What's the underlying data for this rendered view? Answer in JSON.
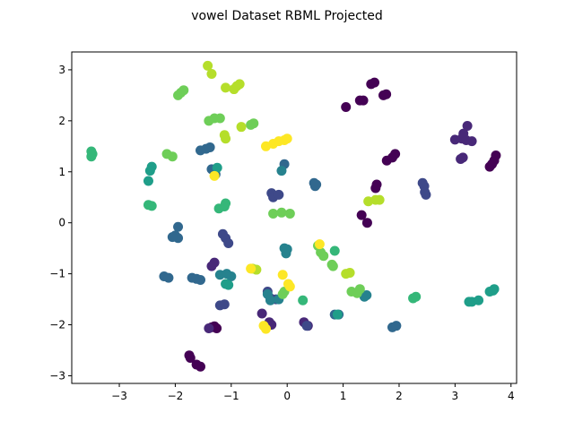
{
  "chart_data": {
    "type": "scatter",
    "title": "vowel Dataset RBML Projected",
    "xlabel": "",
    "ylabel": "",
    "xlim": [
      -3.85,
      4.1
    ],
    "ylim": [
      -3.15,
      3.35
    ],
    "xticks": [
      -3,
      -2,
      -1,
      0,
      1,
      2,
      3,
      4
    ],
    "yticks": [
      -3,
      -2,
      -1,
      0,
      1,
      2,
      3
    ],
    "xtick_labels": [
      "−3",
      "−2",
      "−1",
      "0",
      "1",
      "2",
      "3",
      "4"
    ],
    "ytick_labels": [
      "−3",
      "−2",
      "−1",
      "0",
      "1",
      "2",
      "3"
    ],
    "grid": false,
    "legend": "none",
    "colormap": "viridis",
    "palette": [
      "#440154",
      "#482878",
      "#3e4989",
      "#31688e",
      "#26828e",
      "#1f9e89",
      "#35b779",
      "#6ece58",
      "#b5de2b",
      "#fde725"
    ],
    "points": [
      {
        "x": 1.05,
        "y": 2.27,
        "c": 0
      },
      {
        "x": 1.3,
        "y": 2.4,
        "c": 0
      },
      {
        "x": 1.36,
        "y": 2.4,
        "c": 0
      },
      {
        "x": 1.5,
        "y": 2.72,
        "c": 0
      },
      {
        "x": 1.56,
        "y": 2.75,
        "c": 0
      },
      {
        "x": 1.72,
        "y": 2.5,
        "c": 0
      },
      {
        "x": 1.77,
        "y": 2.52,
        "c": 0
      },
      {
        "x": 1.78,
        "y": 1.22,
        "c": 0
      },
      {
        "x": 1.88,
        "y": 1.28,
        "c": 0
      },
      {
        "x": 1.93,
        "y": 1.35,
        "c": 0
      },
      {
        "x": 1.58,
        "y": 0.68,
        "c": 0
      },
      {
        "x": 1.6,
        "y": 0.75,
        "c": 0
      },
      {
        "x": 1.33,
        "y": 0.15,
        "c": 0
      },
      {
        "x": 1.43,
        "y": 0.0,
        "c": 0
      },
      {
        "x": 3.62,
        "y": 1.1,
        "c": 0
      },
      {
        "x": 3.66,
        "y": 1.15,
        "c": 0
      },
      {
        "x": 3.7,
        "y": 1.22,
        "c": 0
      },
      {
        "x": 3.73,
        "y": 1.32,
        "c": 0
      },
      {
        "x": -1.75,
        "y": -2.6,
        "c": 0
      },
      {
        "x": -1.73,
        "y": -2.65,
        "c": 0
      },
      {
        "x": -1.62,
        "y": -2.78,
        "c": 0
      },
      {
        "x": -1.55,
        "y": -2.82,
        "c": 0
      },
      {
        "x": -1.35,
        "y": -2.05,
        "c": 0
      },
      {
        "x": -1.3,
        "y": -2.03,
        "c": 0
      },
      {
        "x": -1.26,
        "y": -2.07,
        "c": 0
      },
      {
        "x": 3.0,
        "y": 1.63,
        "c": 1
      },
      {
        "x": 3.12,
        "y": 1.65,
        "c": 1
      },
      {
        "x": 3.15,
        "y": 1.75,
        "c": 1
      },
      {
        "x": 3.22,
        "y": 1.9,
        "c": 1
      },
      {
        "x": 3.2,
        "y": 1.62,
        "c": 1
      },
      {
        "x": 3.3,
        "y": 1.6,
        "c": 1
      },
      {
        "x": 3.14,
        "y": 1.28,
        "c": 1
      },
      {
        "x": 3.1,
        "y": 1.25,
        "c": 1
      },
      {
        "x": -0.45,
        "y": -1.78,
        "c": 1
      },
      {
        "x": -0.32,
        "y": -1.95,
        "c": 1
      },
      {
        "x": -0.28,
        "y": -2.0,
        "c": 1
      },
      {
        "x": 0.3,
        "y": -1.95,
        "c": 1
      },
      {
        "x": 0.37,
        "y": -2.02,
        "c": 1
      },
      {
        "x": -1.35,
        "y": -0.85,
        "c": 1
      },
      {
        "x": -1.3,
        "y": -0.78,
        "c": 1
      },
      {
        "x": -1.4,
        "y": -2.07,
        "c": 1
      },
      {
        "x": 2.42,
        "y": 0.78,
        "c": 2
      },
      {
        "x": 2.45,
        "y": 0.72,
        "c": 2
      },
      {
        "x": 2.46,
        "y": 0.6,
        "c": 2
      },
      {
        "x": 2.48,
        "y": 0.55,
        "c": 2
      },
      {
        "x": -0.28,
        "y": 0.58,
        "c": 2
      },
      {
        "x": -0.25,
        "y": 0.5,
        "c": 2
      },
      {
        "x": -0.15,
        "y": 0.55,
        "c": 2
      },
      {
        "x": -0.35,
        "y": -1.35,
        "c": 2
      },
      {
        "x": -0.3,
        "y": -1.48,
        "c": 2
      },
      {
        "x": -0.2,
        "y": -1.5,
        "c": 2
      },
      {
        "x": -1.15,
        "y": -0.22,
        "c": 2
      },
      {
        "x": -1.1,
        "y": -0.3,
        "c": 2
      },
      {
        "x": -1.05,
        "y": -0.4,
        "c": 2
      },
      {
        "x": -1.2,
        "y": -1.62,
        "c": 2
      },
      {
        "x": -1.12,
        "y": -1.6,
        "c": 2
      },
      {
        "x": 0.35,
        "y": -2.02,
        "c": 2
      },
      {
        "x": -1.45,
        "y": 1.45,
        "c": 3
      },
      {
        "x": -1.55,
        "y": 1.42,
        "c": 3
      },
      {
        "x": -1.38,
        "y": 1.48,
        "c": 3
      },
      {
        "x": -1.35,
        "y": 1.05,
        "c": 3
      },
      {
        "x": -1.3,
        "y": 1.0,
        "c": 3
      },
      {
        "x": -1.28,
        "y": 0.95,
        "c": 3
      },
      {
        "x": 0.48,
        "y": 0.78,
        "c": 3
      },
      {
        "x": 0.5,
        "y": 0.72,
        "c": 3
      },
      {
        "x": 0.52,
        "y": 0.75,
        "c": 3
      },
      {
        "x": -2.0,
        "y": -0.25,
        "c": 3
      },
      {
        "x": -1.95,
        "y": -0.3,
        "c": 3
      },
      {
        "x": -2.05,
        "y": -0.28,
        "c": 3
      },
      {
        "x": -1.95,
        "y": -0.08,
        "c": 3
      },
      {
        "x": -2.2,
        "y": -1.05,
        "c": 3
      },
      {
        "x": -2.12,
        "y": -1.08,
        "c": 3
      },
      {
        "x": -1.7,
        "y": -1.08,
        "c": 3
      },
      {
        "x": -1.62,
        "y": -1.1,
        "c": 3
      },
      {
        "x": -1.55,
        "y": -1.12,
        "c": 3
      },
      {
        "x": 1.88,
        "y": -2.05,
        "c": 3
      },
      {
        "x": 1.95,
        "y": -2.02,
        "c": 3
      },
      {
        "x": 0.85,
        "y": -1.8,
        "c": 3
      },
      {
        "x": 0.92,
        "y": -1.8,
        "c": 3
      },
      {
        "x": -0.05,
        "y": 1.15,
        "c": 3
      },
      {
        "x": -0.1,
        "y": 1.02,
        "c": 4
      },
      {
        "x": -0.05,
        "y": -0.5,
        "c": 4
      },
      {
        "x": 0.0,
        "y": -0.52,
        "c": 4
      },
      {
        "x": -0.02,
        "y": -0.6,
        "c": 4
      },
      {
        "x": -0.35,
        "y": -1.4,
        "c": 4
      },
      {
        "x": -0.3,
        "y": -1.52,
        "c": 4
      },
      {
        "x": -1.0,
        "y": -1.05,
        "c": 4
      },
      {
        "x": -1.08,
        "y": -1.0,
        "c": 4
      },
      {
        "x": -1.2,
        "y": -1.02,
        "c": 4
      },
      {
        "x": 1.38,
        "y": -1.45,
        "c": 4
      },
      {
        "x": 1.42,
        "y": -1.42,
        "c": 4
      },
      {
        "x": -0.15,
        "y": -1.5,
        "c": 4
      },
      {
        "x": 3.25,
        "y": -1.55,
        "c": 5
      },
      {
        "x": 3.3,
        "y": -1.55,
        "c": 5
      },
      {
        "x": 3.42,
        "y": -1.52,
        "c": 5
      },
      {
        "x": 3.62,
        "y": -1.35,
        "c": 5
      },
      {
        "x": 3.7,
        "y": -1.3,
        "c": 5
      },
      {
        "x": 3.68,
        "y": -1.33,
        "c": 5
      },
      {
        "x": -2.42,
        "y": 1.1,
        "c": 5
      },
      {
        "x": -2.45,
        "y": 1.02,
        "c": 5
      },
      {
        "x": -2.48,
        "y": 0.82,
        "c": 5
      },
      {
        "x": -1.05,
        "y": -1.22,
        "c": 5
      },
      {
        "x": -1.1,
        "y": -1.2,
        "c": 5
      },
      {
        "x": -1.25,
        "y": 1.08,
        "c": 5
      },
      {
        "x": 0.9,
        "y": -1.8,
        "c": 5
      },
      {
        "x": -3.5,
        "y": 1.4,
        "c": 6
      },
      {
        "x": -3.5,
        "y": 1.3,
        "c": 6
      },
      {
        "x": -3.48,
        "y": 1.35,
        "c": 6
      },
      {
        "x": -2.48,
        "y": 0.35,
        "c": 6
      },
      {
        "x": -2.42,
        "y": 0.33,
        "c": 6
      },
      {
        "x": -1.22,
        "y": 0.28,
        "c": 6
      },
      {
        "x": -1.12,
        "y": 0.32,
        "c": 6
      },
      {
        "x": -1.1,
        "y": 0.38,
        "c": 6
      },
      {
        "x": 2.25,
        "y": -1.48,
        "c": 6
      },
      {
        "x": 2.3,
        "y": -1.45,
        "c": 6
      },
      {
        "x": 0.85,
        "y": -0.55,
        "c": 6
      },
      {
        "x": 0.28,
        "y": -1.52,
        "c": 6
      },
      {
        "x": -1.95,
        "y": 2.5,
        "c": 7
      },
      {
        "x": -1.9,
        "y": 2.55,
        "c": 7
      },
      {
        "x": -1.85,
        "y": 2.6,
        "c": 7
      },
      {
        "x": -1.3,
        "y": 2.05,
        "c": 7
      },
      {
        "x": -1.4,
        "y": 2.0,
        "c": 7
      },
      {
        "x": -1.2,
        "y": 2.05,
        "c": 7
      },
      {
        "x": -2.15,
        "y": 1.35,
        "c": 7
      },
      {
        "x": -2.05,
        "y": 1.3,
        "c": 7
      },
      {
        "x": -0.65,
        "y": 1.92,
        "c": 7
      },
      {
        "x": -0.6,
        "y": 1.95,
        "c": 7
      },
      {
        "x": -0.25,
        "y": 0.18,
        "c": 7
      },
      {
        "x": -0.1,
        "y": 0.2,
        "c": 7
      },
      {
        "x": 0.05,
        "y": 0.18,
        "c": 7
      },
      {
        "x": -0.08,
        "y": -1.4,
        "c": 7
      },
      {
        "x": -0.05,
        "y": -1.35,
        "c": 7
      },
      {
        "x": 1.15,
        "y": -1.35,
        "c": 7
      },
      {
        "x": 1.25,
        "y": -1.38,
        "c": 7
      },
      {
        "x": 1.3,
        "y": -1.3,
        "c": 7
      },
      {
        "x": 0.55,
        "y": -0.45,
        "c": 7
      },
      {
        "x": 0.6,
        "y": -0.58,
        "c": 7
      },
      {
        "x": 0.65,
        "y": -0.65,
        "c": 7
      },
      {
        "x": 0.8,
        "y": -0.82,
        "c": 7
      },
      {
        "x": 0.82,
        "y": -0.85,
        "c": 7
      },
      {
        "x": -1.42,
        "y": 3.08,
        "c": 8
      },
      {
        "x": -1.35,
        "y": 2.92,
        "c": 8
      },
      {
        "x": -1.1,
        "y": 2.65,
        "c": 8
      },
      {
        "x": -0.95,
        "y": 2.62,
        "c": 8
      },
      {
        "x": -0.9,
        "y": 2.68,
        "c": 8
      },
      {
        "x": -0.85,
        "y": 2.72,
        "c": 8
      },
      {
        "x": -1.12,
        "y": 1.72,
        "c": 8
      },
      {
        "x": -1.1,
        "y": 1.65,
        "c": 8
      },
      {
        "x": -0.82,
        "y": 1.88,
        "c": 8
      },
      {
        "x": 1.45,
        "y": 0.42,
        "c": 8
      },
      {
        "x": 1.58,
        "y": 0.45,
        "c": 8
      },
      {
        "x": 1.65,
        "y": 0.45,
        "c": 8
      },
      {
        "x": 1.05,
        "y": -1.0,
        "c": 8
      },
      {
        "x": 1.12,
        "y": -0.98,
        "c": 8
      },
      {
        "x": -0.55,
        "y": -0.92,
        "c": 8
      },
      {
        "x": -0.62,
        "y": -0.9,
        "c": 8
      },
      {
        "x": -0.38,
        "y": 1.5,
        "c": 9
      },
      {
        "x": -0.25,
        "y": 1.55,
        "c": 9
      },
      {
        "x": -0.15,
        "y": 1.6,
        "c": 9
      },
      {
        "x": -0.05,
        "y": 1.62,
        "c": 9
      },
      {
        "x": 0.0,
        "y": 1.65,
        "c": 9
      },
      {
        "x": -0.42,
        "y": -2.02,
        "c": 9
      },
      {
        "x": -0.38,
        "y": -2.08,
        "c": 9
      },
      {
        "x": -0.08,
        "y": -1.02,
        "c": 9
      },
      {
        "x": 0.02,
        "y": -1.2,
        "c": 9
      },
      {
        "x": 0.05,
        "y": -1.25,
        "c": 9
      },
      {
        "x": -0.65,
        "y": -0.9,
        "c": 9
      },
      {
        "x": 0.58,
        "y": -0.42,
        "c": 9
      },
      {
        "x": -1.3,
        "y": 0.92,
        "c": 9
      }
    ]
  }
}
